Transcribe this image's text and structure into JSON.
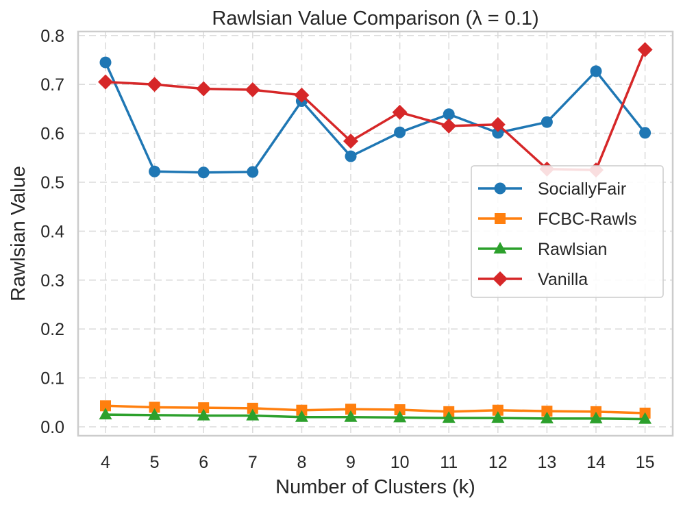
{
  "chart_data": {
    "type": "line",
    "title": "Rawlsian Value Comparison (λ = 0.1)",
    "xlabel": "Number of Clusters (k)",
    "ylabel": "Rawlsian Value",
    "x": [
      4,
      5,
      6,
      7,
      8,
      9,
      10,
      11,
      12,
      13,
      14,
      15
    ],
    "ylim": [
      -0.02,
      0.81
    ],
    "yticks": [
      0.0,
      0.1,
      0.2,
      0.3,
      0.4,
      0.5,
      0.6,
      0.7,
      0.8
    ],
    "ytick_labels": [
      "0.0",
      "0.1",
      "0.2",
      "0.3",
      "0.4",
      "0.5",
      "0.6",
      "0.7",
      "0.8"
    ],
    "xtick_labels": [
      "4",
      "5",
      "6",
      "7",
      "8",
      "9",
      "10",
      "11",
      "12",
      "13",
      "14",
      "15"
    ],
    "grid": true,
    "legend_position": "center-right",
    "series": [
      {
        "name": "SociallyFair",
        "color": "#1f77b4",
        "marker": "circle",
        "values": [
          0.745,
          0.522,
          0.52,
          0.521,
          0.666,
          0.553,
          0.602,
          0.639,
          0.601,
          0.623,
          0.727,
          0.601
        ]
      },
      {
        "name": "FCBC-Rawls",
        "color": "#ff7f0e",
        "marker": "square",
        "values": [
          0.043,
          0.04,
          0.039,
          0.038,
          0.034,
          0.036,
          0.035,
          0.031,
          0.034,
          0.032,
          0.031,
          0.028
        ]
      },
      {
        "name": "Rawlsian",
        "color": "#2ca02c",
        "marker": "triangle",
        "values": [
          0.025,
          0.024,
          0.023,
          0.023,
          0.02,
          0.02,
          0.019,
          0.018,
          0.018,
          0.017,
          0.017,
          0.016
        ]
      },
      {
        "name": "Vanilla",
        "color": "#d62728",
        "marker": "diamond",
        "values": [
          0.705,
          0.7,
          0.691,
          0.689,
          0.678,
          0.584,
          0.643,
          0.615,
          0.618,
          0.527,
          0.525,
          0.771
        ]
      }
    ]
  }
}
